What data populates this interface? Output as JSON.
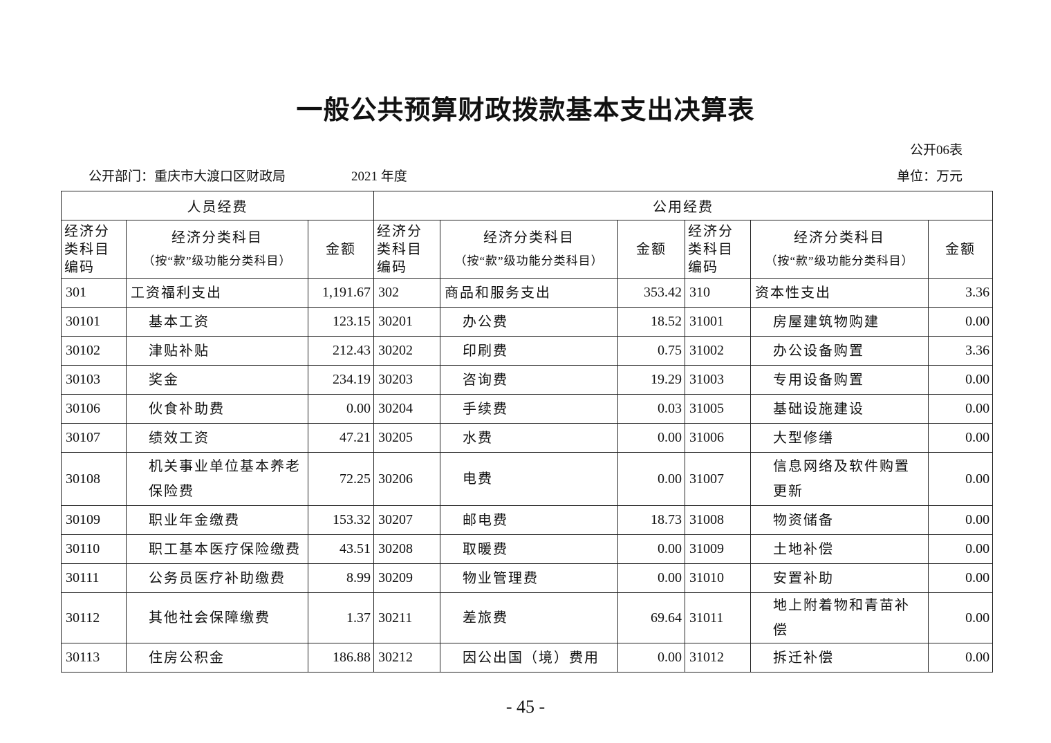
{
  "title": "一般公共预算财政拨款基本支出决算表",
  "table_no": "公开06表",
  "department": "公开部门：重庆市大渡口区财政局",
  "year": "2021 年度",
  "unit": "单位：万元",
  "groups": [
    "人员经费",
    "公用经费"
  ],
  "headers": {
    "code": "经济分类科目编码",
    "item": "经济分类科目",
    "item_note": "（按“款”级功能分类科目）",
    "amount": "金额"
  },
  "rows": [
    [
      "301",
      "工资福利支出",
      "1,191.67",
      "302",
      "商品和服务支出",
      "353.42",
      "310",
      "资本性支出",
      "3.36"
    ],
    [
      "30101",
      "基本工资",
      "123.15",
      "30201",
      "办公费",
      "18.52",
      "31001",
      "房屋建筑物购建",
      "0.00"
    ],
    [
      "30102",
      "津贴补贴",
      "212.43",
      "30202",
      "印刷费",
      "0.75",
      "31002",
      "办公设备购置",
      "3.36"
    ],
    [
      "30103",
      "奖金",
      "234.19",
      "30203",
      "咨询费",
      "19.29",
      "31003",
      "专用设备购置",
      "0.00"
    ],
    [
      "30106",
      "伙食补助费",
      "0.00",
      "30204",
      "手续费",
      "0.03",
      "31005",
      "基础设施建设",
      "0.00"
    ],
    [
      "30107",
      "绩效工资",
      "47.21",
      "30205",
      "水费",
      "0.00",
      "31006",
      "大型修缮",
      "0.00"
    ],
    [
      "30108",
      "机关事业单位基本养老保险费",
      "72.25",
      "30206",
      "电费",
      "0.00",
      "31007",
      "信息网络及软件购置更新",
      "0.00"
    ],
    [
      "30109",
      "职业年金缴费",
      "153.32",
      "30207",
      "邮电费",
      "18.73",
      "31008",
      "物资储备",
      "0.00"
    ],
    [
      "30110",
      "职工基本医疗保险缴费",
      "43.51",
      "30208",
      "取暖费",
      "0.00",
      "31009",
      "土地补偿",
      "0.00"
    ],
    [
      "30111",
      "公务员医疗补助缴费",
      "8.99",
      "30209",
      "物业管理费",
      "0.00",
      "31010",
      "安置补助",
      "0.00"
    ],
    [
      "30112",
      "其他社会保障缴费",
      "1.37",
      "30211",
      "差旅费",
      "69.64",
      "31011",
      "地上附着物和青苗补偿",
      "0.00"
    ],
    [
      "30113",
      "住房公积金",
      "186.88",
      "30212",
      "因公出国（境）费用",
      "0.00",
      "31012",
      "拆迁补偿",
      "0.00"
    ]
  ],
  "page_number": "- 45 -"
}
